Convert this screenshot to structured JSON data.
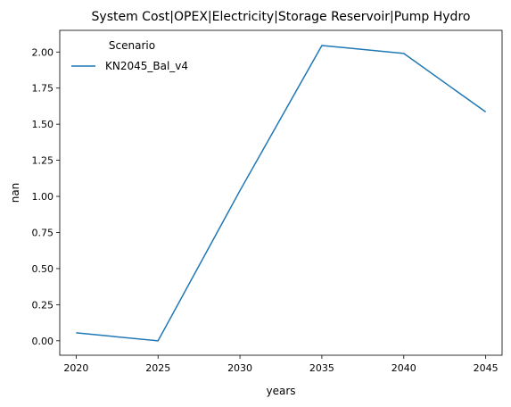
{
  "chart_data": {
    "type": "line",
    "title": "System Cost|OPEX|Electricity|Storage Reservoir|Pump Hydro",
    "xlabel": "years",
    "ylabel": "nan",
    "x": [
      2020,
      2025,
      2030,
      2035,
      2040,
      2045
    ],
    "xticks": [
      "2020",
      "2025",
      "2030",
      "2035",
      "2040",
      "2045"
    ],
    "yticks": [
      "0.00",
      "0.25",
      "0.50",
      "0.75",
      "1.00",
      "1.25",
      "1.50",
      "1.75",
      "2.00"
    ],
    "xlim": [
      2019,
      2046
    ],
    "ylim": [
      -0.1,
      2.15
    ],
    "grid": false,
    "legend": {
      "title": "Scenario",
      "placement": "top-left"
    },
    "series": [
      {
        "name": "KN2045_Bal_v4",
        "color": "#1f77b4",
        "values": [
          0.055,
          0.0,
          1.04,
          2.045,
          1.99,
          1.585
        ]
      }
    ]
  }
}
